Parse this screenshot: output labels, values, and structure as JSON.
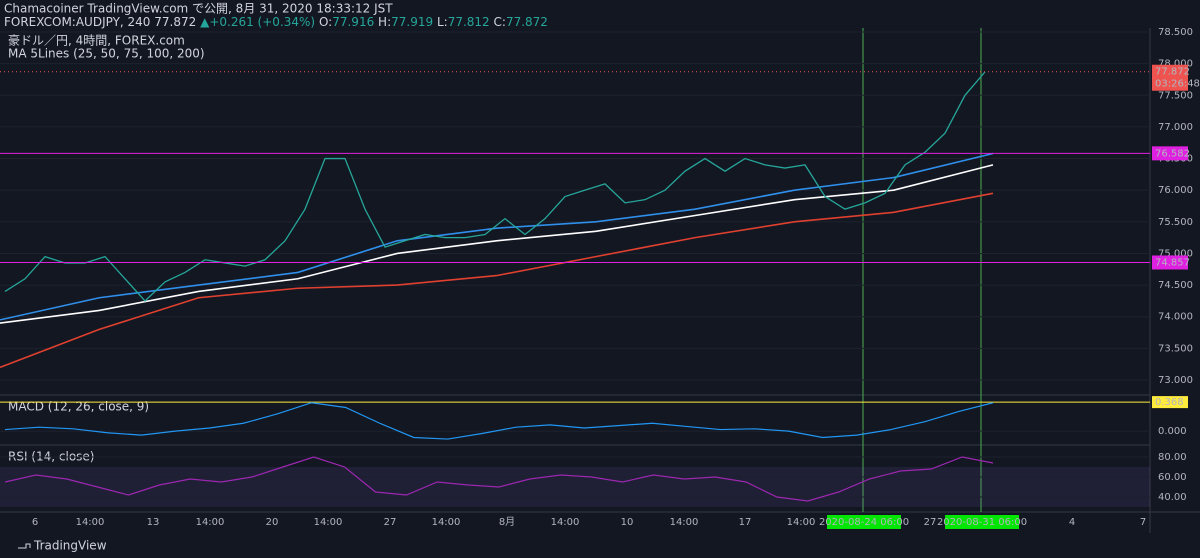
{
  "header": {
    "line1": "Chamacoiner TradingView.com で公開, 8月 31, 2020 18:33:12 JST",
    "symbol": "FOREXCOM:AUDJPY, 240",
    "last": "77.872",
    "change": "▲+0.261 (+0.34%)",
    "ohlc": [
      {
        "label": "O:",
        "value": "77.916"
      },
      {
        "label": "H:",
        "value": "77.919"
      },
      {
        "label": "L:",
        "value": "77.812"
      },
      {
        "label": "C:",
        "value": "77.872"
      }
    ]
  },
  "legend": [
    "豪ドル／円, 4時間, FOREX.com",
    "MA 5Lines (25, 50, 75, 100, 200)"
  ],
  "chart_data": {
    "type": "line",
    "ylim": [
      73,
      78.5
    ],
    "yticks": [
      {
        "value": 73,
        "label": "73.000"
      },
      {
        "value": 73.5,
        "label": "73.500"
      },
      {
        "value": 74,
        "label": "74.000"
      },
      {
        "value": 74.5,
        "label": "74.500"
      },
      {
        "value": 75,
        "label": "75.000"
      },
      {
        "value": 75.5,
        "label": "75.500"
      },
      {
        "value": 76,
        "label": "76.000"
      },
      {
        "value": 76.5,
        "label": "76.500"
      },
      {
        "value": 77,
        "label": "77.000"
      },
      {
        "value": 77.5,
        "label": "77.500"
      },
      {
        "value": 78,
        "label": "78.000"
      },
      {
        "value": 78.5,
        "label": "78.500"
      }
    ],
    "price": {
      "name": "Close",
      "color": "#26a69a",
      "values": [
        74.4,
        74.6,
        74.95,
        74.85,
        74.85,
        74.95,
        74.6,
        74.25,
        74.55,
        74.7,
        74.9,
        74.85,
        74.8,
        74.9,
        75.2,
        75.7,
        76.5,
        76.5,
        75.7,
        75.1,
        75.2,
        75.3,
        75.25,
        75.25,
        75.3,
        75.55,
        75.3,
        75.55,
        75.9,
        76.0,
        76.1,
        75.8,
        75.85,
        76.0,
        76.3,
        76.5,
        76.3,
        76.5,
        76.4,
        76.35,
        76.4,
        75.9,
        75.7,
        75.8,
        75.95,
        76.4,
        76.6,
        76.9,
        77.5,
        77.87
      ]
    },
    "series": [
      {
        "color": "#2f8fea",
        "values": [
          73.95,
          74.3,
          74.5,
          74.7,
          75.2,
          75.4,
          75.5,
          75.7,
          76.0,
          76.2,
          76.58
        ]
      },
      {
        "color": "#ffffff",
        "values": [
          73.9,
          74.1,
          74.4,
          74.6,
          75.0,
          75.2,
          75.35,
          75.6,
          75.85,
          76.0,
          76.4
        ]
      },
      {
        "color": "#e0402f",
        "values": [
          73.2,
          73.8,
          74.3,
          74.45,
          74.5,
          74.65,
          74.95,
          75.25,
          75.5,
          75.65,
          75.95
        ]
      }
    ],
    "levels": [
      {
        "value": 76.582,
        "label": "76.582",
        "color": "#e020e0"
      },
      {
        "value": 74.857,
        "label": "74.857",
        "color": "#e020e0"
      }
    ],
    "last_price": {
      "value": 77.872,
      "label": "77.872",
      "countdown": "03:26:48"
    },
    "macd": {
      "title": "MACD (12, 26, close, 9)",
      "ylim": [
        -0.15,
        0.42
      ],
      "yticks": [
        {
          "value": 0,
          "label": "0.000"
        }
      ],
      "signal_level": {
        "value": 0.368,
        "label": "0.368"
      },
      "values": [
        0.02,
        0.05,
        0.03,
        -0.02,
        -0.05,
        0.0,
        0.04,
        0.1,
        0.22,
        0.36,
        0.3,
        0.1,
        -0.08,
        -0.1,
        -0.03,
        0.05,
        0.08,
        0.04,
        0.07,
        0.1,
        0.06,
        0.02,
        0.03,
        0.0,
        -0.08,
        -0.05,
        0.02,
        0.12,
        0.25,
        0.36
      ]
    },
    "rsi": {
      "title": "RSI (14, close)",
      "ylim": [
        25,
        90
      ],
      "yticks": [
        {
          "value": 80,
          "label": "80.00"
        },
        {
          "value": 60,
          "label": "60.00"
        },
        {
          "value": 40,
          "label": "40.00"
        }
      ],
      "values": [
        55,
        62,
        58,
        50,
        42,
        52,
        58,
        55,
        60,
        70,
        80,
        70,
        45,
        42,
        55,
        52,
        50,
        58,
        62,
        60,
        55,
        62,
        58,
        60,
        55,
        40,
        36,
        45,
        58,
        66,
        68,
        80,
        74
      ]
    },
    "xlabels": [
      "6",
      "14:00",
      "13",
      "14:00",
      "20",
      "14:00",
      "27",
      "14:00",
      "8月",
      "14:00",
      "10",
      "14:00",
      "17",
      "14:00",
      "27",
      "4",
      "7"
    ],
    "markers": [
      "2020-08-24 06:00",
      "2020-08-31 06:00"
    ]
  },
  "footer": "TradingView"
}
